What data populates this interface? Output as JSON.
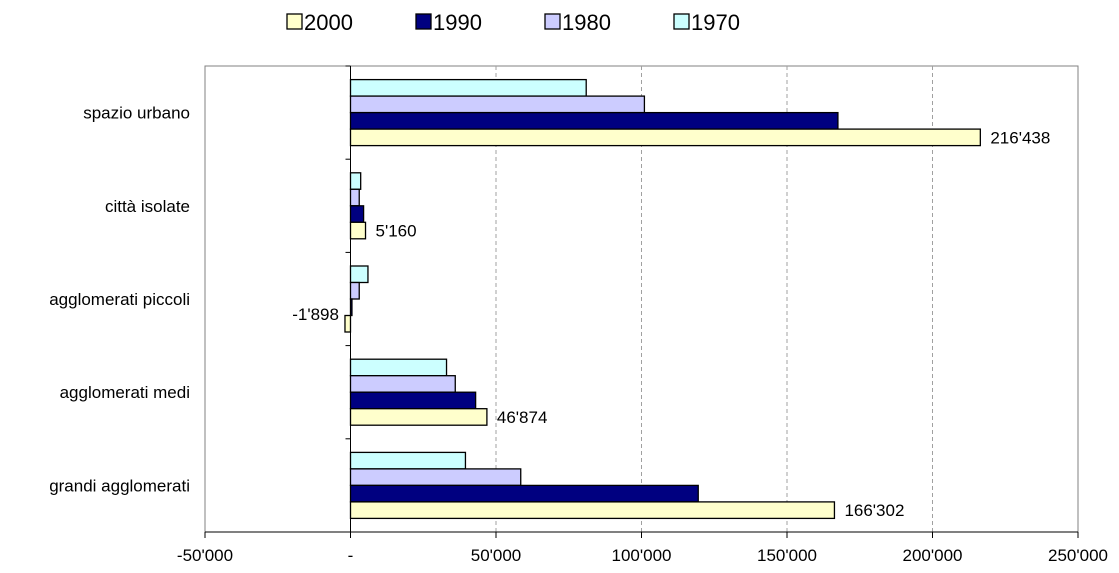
{
  "chart_data": {
    "type": "bar",
    "orientation": "horizontal",
    "categories": [
      "spazio urbano",
      "città isolate",
      "agglomerati piccoli",
      "agglomerati medi",
      "grandi agglomerati"
    ],
    "series": [
      {
        "name": "1970",
        "color": "#CCFFFF",
        "values": [
          81000,
          3500,
          6000,
          33000,
          39500
        ]
      },
      {
        "name": "1980",
        "color": "#CCCCFF",
        "values": [
          101000,
          3000,
          3000,
          36000,
          58500
        ]
      },
      {
        "name": "1990",
        "color": "#000080",
        "values": [
          167500,
          4500,
          500,
          43000,
          119500
        ]
      },
      {
        "name": "2000",
        "color": "#FFFFCC",
        "values": [
          216438,
          5160,
          -1898,
          46874,
          166302
        ]
      }
    ],
    "legend_order": [
      "2000",
      "1990",
      "1980",
      "1970"
    ],
    "data_labels": [
      "216'438",
      "5'160",
      "-1'898",
      "46'874",
      "166'302"
    ],
    "xlim": [
      -50000,
      250000
    ],
    "x_ticks": [
      -50000,
      0,
      50000,
      100000,
      150000,
      200000,
      250000
    ],
    "x_tick_labels": [
      "-50'000",
      "-",
      "50'000",
      "100'000",
      "150'000",
      "200'000",
      "250'000"
    ],
    "grid": "vertical-dashed",
    "legend_position": "top"
  }
}
